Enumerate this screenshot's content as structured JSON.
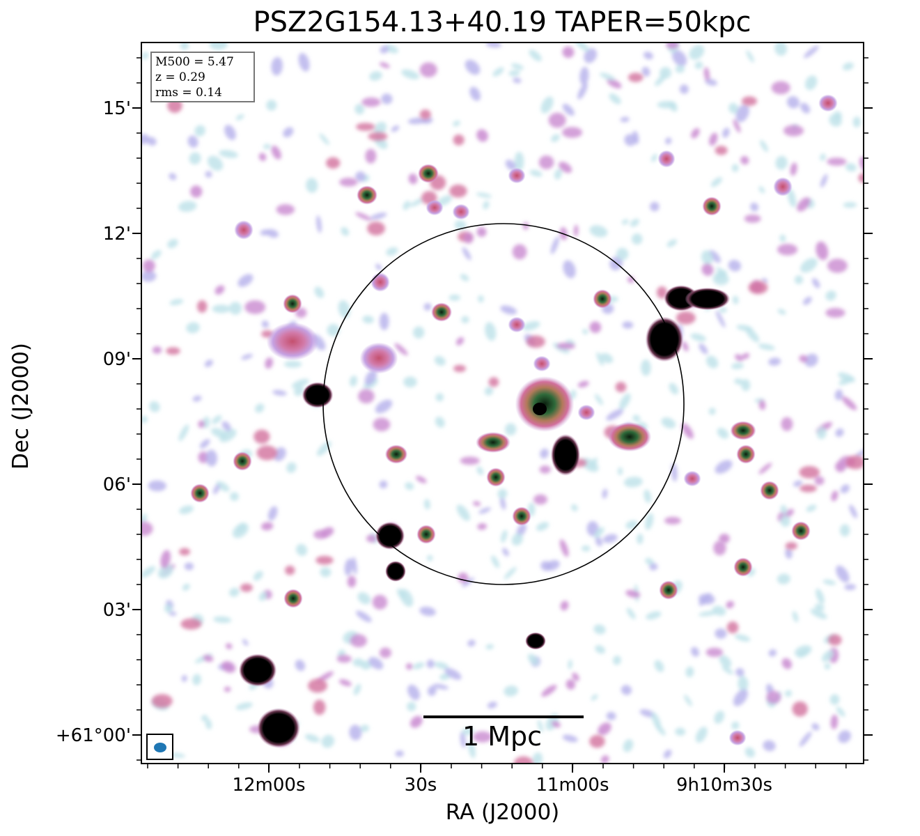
{
  "title": "PSZ2G154.13+40.19 TAPER=50kpc",
  "axes": {
    "xlabel": "RA (J2000)",
    "ylabel": "Dec (J2000)",
    "x_ticks": [
      "12m00s",
      "30s",
      "11m00s",
      "9h10m30s"
    ],
    "y_ticks": [
      "15'",
      "12'",
      "09'",
      "06'",
      "03'",
      "+61°00'"
    ]
  },
  "info": {
    "m500": "M500 = 5.47",
    "z": "z = 0.29",
    "rms": "rms = 0.14"
  },
  "scalebar": {
    "label": "1 Mpc"
  },
  "colors": {
    "background": "#ffffff",
    "low_emission": "#bfe3ea",
    "mid_emission": "#b9b4ec",
    "magenta_emission": "#c98ad0",
    "pink_emission": "#d26f9c",
    "green_core": "#2f6a3a",
    "black_core": "#000000",
    "beam": "#1f77b4",
    "circle": "#000000"
  }
}
